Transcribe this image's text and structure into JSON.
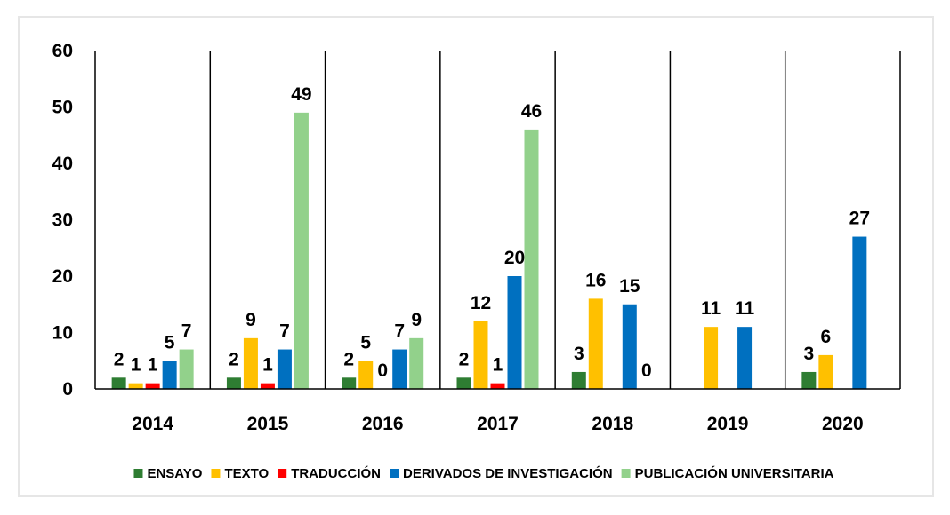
{
  "chart_data": {
    "type": "bar",
    "title": "",
    "xlabel": "",
    "ylabel": "",
    "ylim": [
      0,
      60
    ],
    "yticks": [
      0,
      10,
      20,
      30,
      40,
      50,
      60
    ],
    "grid": false,
    "legend_position": "bottom",
    "categories": [
      "2014",
      "2015",
      "2016",
      "2017",
      "2018",
      "2019",
      "2020"
    ],
    "series": [
      {
        "name": "ENSAYO",
        "color": "#2e7d32",
        "values": [
          2,
          2,
          2,
          2,
          3,
          null,
          3
        ]
      },
      {
        "name": "TEXTO",
        "color": "#ffc000",
        "values": [
          1,
          9,
          5,
          12,
          16,
          11,
          6
        ]
      },
      {
        "name": "TRADUCCIÓN",
        "color": "#ff0000",
        "values": [
          1,
          1,
          0,
          1,
          null,
          null,
          null
        ]
      },
      {
        "name": "DERIVADOS DE INVESTIGACIÓN",
        "color": "#0070c0",
        "values": [
          5,
          7,
          7,
          20,
          15,
          11,
          27
        ]
      },
      {
        "name": "PUBLICACIÓN UNIVERSITARIA",
        "color": "#92d18b",
        "values": [
          7,
          49,
          9,
          46,
          0,
          null,
          null
        ]
      }
    ]
  }
}
